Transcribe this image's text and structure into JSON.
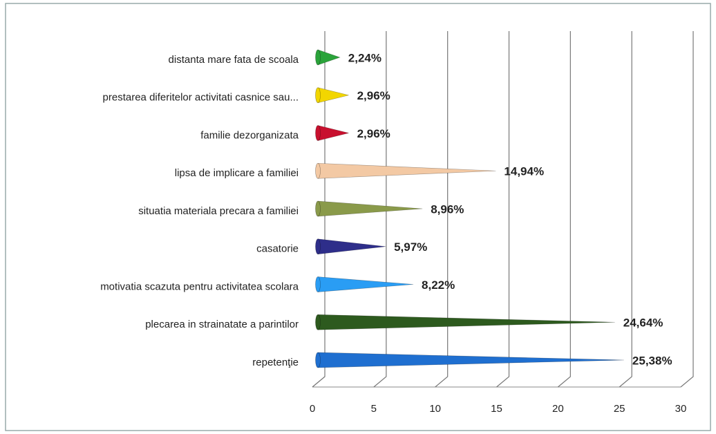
{
  "chart_data": {
    "type": "bar",
    "orientation": "horizontal",
    "categories": [
      "distanta mare fata de scoala",
      "prestarea diferitelor activitati casnice sau...",
      "familie dezorganizata",
      "lipsa de implicare a familiei",
      "situatia materiala precara a familiei",
      "casatorie",
      "motivatia scazuta pentru activitatea scolara",
      "plecarea in strainatate a parintilor",
      "repetenţie"
    ],
    "values": [
      2.24,
      2.96,
      2.96,
      14.94,
      8.96,
      5.97,
      8.22,
      24.64,
      25.38
    ],
    "value_labels": [
      "2,24%",
      "2,96%",
      "2,96%",
      "14,94%",
      "8,96%",
      "5,97%",
      "8,22%",
      "24,64%",
      "25,38%"
    ],
    "colors": [
      "#2aa33a",
      "#f2d600",
      "#c8102e",
      "#f3c9a4",
      "#8a9a4a",
      "#2e2e8a",
      "#2a9df4",
      "#2d5a1e",
      "#1f6fd0"
    ],
    "xlim": [
      0,
      30
    ],
    "xticks": [
      0,
      5,
      10,
      15,
      20,
      25,
      30
    ],
    "grid": true
  }
}
